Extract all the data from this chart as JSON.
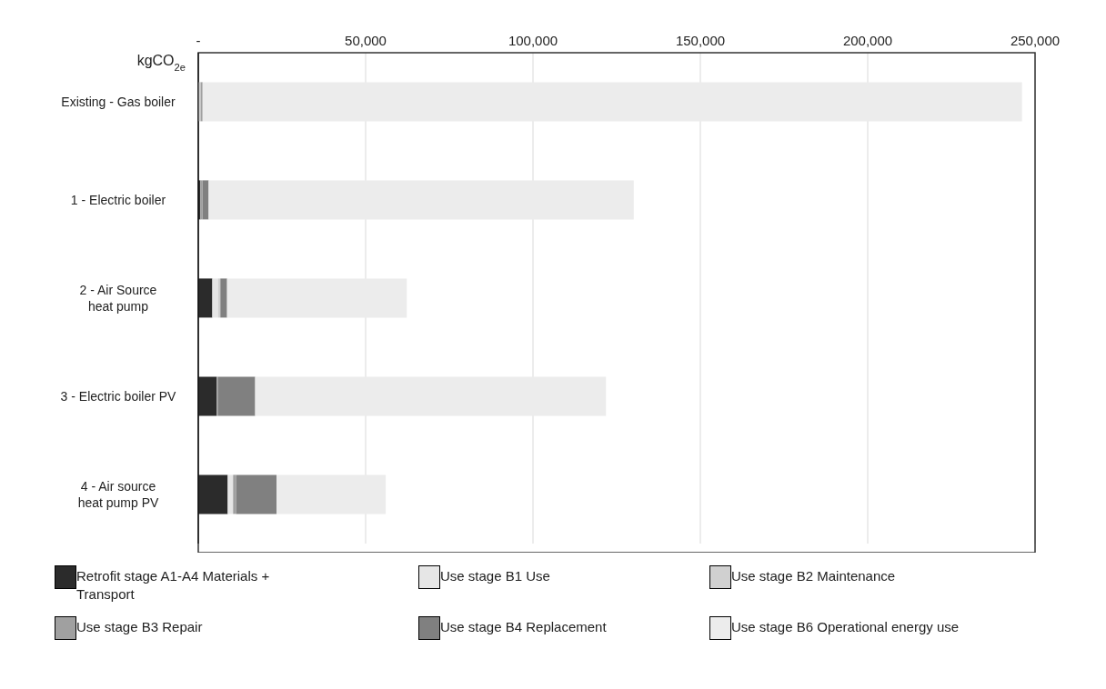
{
  "chart_data": {
    "type": "bar",
    "orientation": "horizontal",
    "stacked": true,
    "xlabel": "kgCO$_{2e}$",
    "categories": [
      "Existing - Gas boiler",
      "1 - Electric boiler",
      "2 - Air Source heat pump",
      "3 - Electric boiler PV",
      "4 - Air source heat pump PV"
    ],
    "series": [
      {
        "name": "Retrofit stage A1-A4  Materials + Transport",
        "color": "#2b2b2b",
        "values": [
          0,
          600,
          4200,
          5500,
          8800
        ]
      },
      {
        "name": "Use stage B1 Use",
        "color": "#e6e6e6",
        "values": [
          0,
          0,
          1700,
          0,
          1600
        ]
      },
      {
        "name": "Use stage B2 Maintenance",
        "color": "#d0d0d0",
        "values": [
          700,
          0,
          700,
          0,
          0
        ]
      },
      {
        "name": "Use stage B3 Repair",
        "color": "#a0a0a0",
        "values": [
          600,
          700,
          0,
          300,
          900
        ]
      },
      {
        "name": "Use stage B4 Replacement",
        "color": "#808080",
        "values": [
          0,
          1800,
          2000,
          11200,
          12100
        ]
      },
      {
        "name": "Use stage B6 Operational energy use",
        "color": "#ececec",
        "values": [
          244800,
          127000,
          53700,
          104800,
          32600
        ]
      }
    ],
    "xlim": [
      0,
      250000
    ],
    "xticks": [
      {
        "value": 0,
        "label": "-"
      },
      {
        "value": 50000,
        "label": "50,000"
      },
      {
        "value": 100000,
        "label": "100,000"
      },
      {
        "value": 150000,
        "label": "150,000"
      },
      {
        "value": 200000,
        "label": "200,000"
      },
      {
        "value": 250000,
        "label": "250,000"
      }
    ],
    "grid": "x",
    "legend": "bottom"
  }
}
